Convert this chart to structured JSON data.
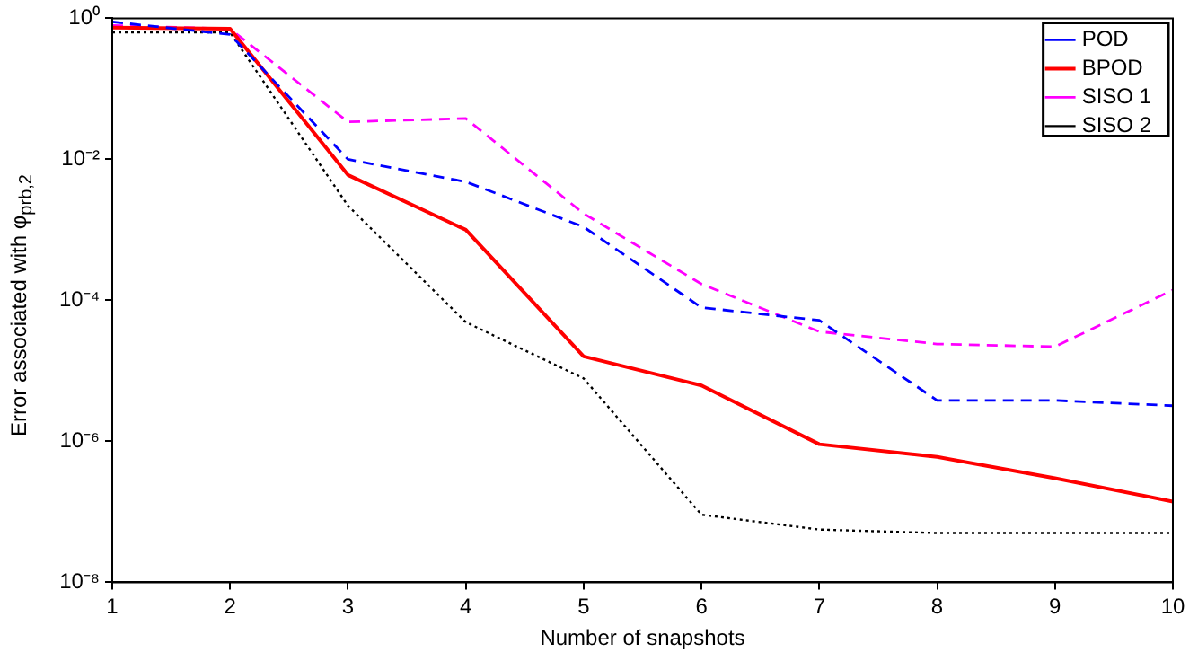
{
  "chart_data": {
    "type": "line",
    "xlabel": "Number of snapshots",
    "ylabel": "Error associated with φ$_{prb,2}$",
    "x": [
      1,
      2,
      3,
      4,
      5,
      6,
      7,
      8,
      9,
      10
    ],
    "series": [
      {
        "name": "POD",
        "color": "#0000ff",
        "line_style": "dashed",
        "values": [
          0.89,
          0.59,
          0.01,
          0.0048,
          0.0011,
          7.9e-05,
          5.2e-05,
          3.8e-06,
          3.8e-06,
          3.2e-06
        ]
      },
      {
        "name": "BPOD",
        "color": "#ff0000",
        "line_style": "solid",
        "values": [
          0.74,
          0.71,
          0.006,
          0.001,
          1.6e-05,
          6.2e-06,
          9.1e-07,
          6e-07,
          3e-07,
          1.4e-07
        ]
      },
      {
        "name": "SISO 1",
        "color": "#ff00ff",
        "line_style": "dashed",
        "values": [
          0.79,
          0.71,
          0.034,
          0.038,
          0.0017,
          0.00017,
          3.6e-05,
          2.4e-05,
          2.2e-05,
          0.00014
        ]
      },
      {
        "name": "SISO 2",
        "color": "#000000",
        "line_style": "dotted",
        "values": [
          0.63,
          0.63,
          0.0022,
          4.9e-05,
          7.8e-06,
          9.1e-08,
          5.6e-08,
          5e-08,
          5e-08,
          5e-08
        ]
      }
    ],
    "xlim": [
      1,
      10
    ],
    "xticks": [
      1,
      2,
      3,
      4,
      5,
      6,
      7,
      8,
      9,
      10
    ],
    "ylim": [
      1e-08,
      1
    ],
    "yticks": [
      {
        "value": 1e-08,
        "label": "10⁻⁸"
      },
      {
        "value": 1e-06,
        "label": "10⁻⁶"
      },
      {
        "value": 0.0001,
        "label": "10⁻⁴"
      },
      {
        "value": 0.01,
        "label": "10⁻²"
      },
      {
        "value": 1,
        "label": "10⁰"
      }
    ],
    "log": "y",
    "grid": false,
    "legend": "top right",
    "marker": "none"
  }
}
